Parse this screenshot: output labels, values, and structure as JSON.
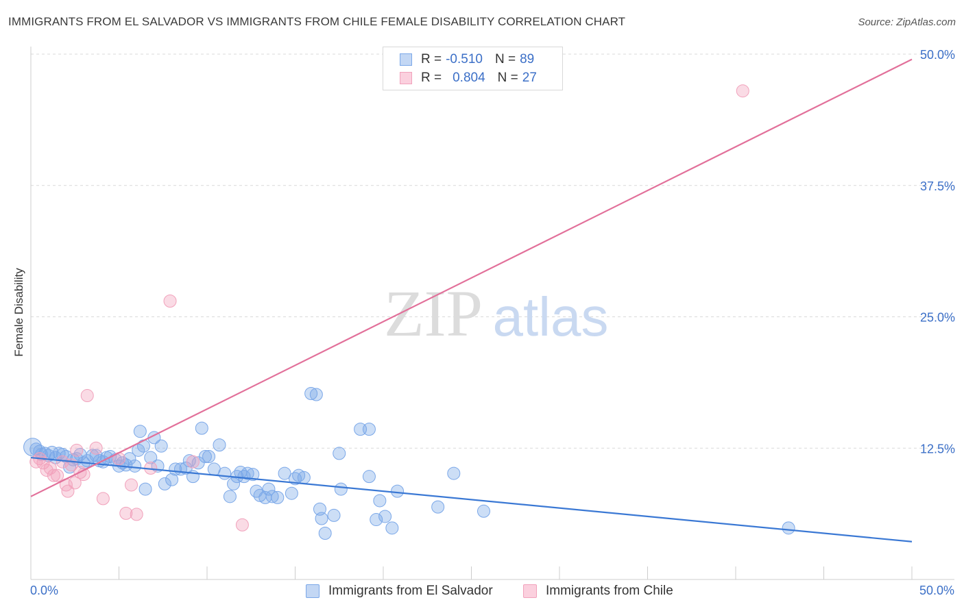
{
  "header": {
    "title": "IMMIGRANTS FROM EL SALVADOR VS IMMIGRANTS FROM CHILE FEMALE DISABILITY CORRELATION CHART",
    "source": "Source: ZipAtlas.com"
  },
  "watermark": {
    "zip": "ZIP",
    "atlas": "atlas"
  },
  "legend": {
    "rows": [
      {
        "r_label": "R =",
        "r_value": "-0.510",
        "n_label": "N =",
        "n_value": "89",
        "color": "#7aa7e8"
      },
      {
        "r_label": "R =",
        "r_value": "0.804",
        "n_label": "N =",
        "n_value": "27",
        "color": "#f1a1bb"
      }
    ]
  },
  "x_axis": {
    "min_label": "0.0%",
    "max_label": "50.0%"
  },
  "chart_data": {
    "type": "scatter",
    "ylabel": "Female Disability",
    "xlim": [
      0,
      50
    ],
    "ylim": [
      0,
      50
    ],
    "y_ticks": [
      {
        "value": 12.5,
        "label": "12.5%"
      },
      {
        "value": 25.0,
        "label": "25.0%"
      },
      {
        "value": 37.5,
        "label": "37.5%"
      },
      {
        "value": 50.0,
        "label": "50.0%"
      }
    ],
    "grid": true,
    "series": [
      {
        "name": "Immigrants from El Salvador",
        "color": "#7aa7e8",
        "line_color": "#3a78d4",
        "trend": {
          "x": [
            0,
            50
          ],
          "y": [
            11.6,
            3.6
          ]
        },
        "points": [
          [
            0.1,
            12.6
          ],
          [
            0.3,
            12.4
          ],
          [
            0.5,
            12.2
          ],
          [
            0.6,
            11.9
          ],
          [
            0.8,
            12.0
          ],
          [
            1.0,
            11.8
          ],
          [
            1.2,
            12.1
          ],
          [
            1.4,
            11.6
          ],
          [
            1.6,
            12.0
          ],
          [
            1.8,
            11.9
          ],
          [
            2.0,
            11.7
          ],
          [
            2.2,
            10.7
          ],
          [
            2.4,
            11.4
          ],
          [
            2.6,
            11.5
          ],
          [
            2.8,
            11.9
          ],
          [
            3.0,
            11.1
          ],
          [
            3.2,
            11.3
          ],
          [
            3.5,
            11.8
          ],
          [
            3.7,
            11.8
          ],
          [
            3.9,
            11.3
          ],
          [
            4.1,
            11.2
          ],
          [
            4.3,
            11.6
          ],
          [
            4.5,
            11.7
          ],
          [
            4.8,
            11.4
          ],
          [
            5.0,
            10.8
          ],
          [
            5.2,
            11.1
          ],
          [
            5.4,
            10.9
          ],
          [
            5.6,
            11.5
          ],
          [
            5.9,
            10.8
          ],
          [
            6.1,
            12.3
          ],
          [
            6.2,
            14.1
          ],
          [
            6.4,
            12.7
          ],
          [
            6.5,
            8.6
          ],
          [
            6.8,
            11.6
          ],
          [
            7.0,
            13.5
          ],
          [
            7.2,
            10.8
          ],
          [
            7.4,
            12.7
          ],
          [
            7.6,
            9.1
          ],
          [
            8.0,
            9.5
          ],
          [
            8.2,
            10.5
          ],
          [
            8.5,
            10.5
          ],
          [
            8.8,
            10.6
          ],
          [
            9.0,
            11.3
          ],
          [
            9.2,
            9.8
          ],
          [
            9.5,
            11.1
          ],
          [
            9.7,
            14.4
          ],
          [
            9.9,
            11.7
          ],
          [
            10.1,
            11.7
          ],
          [
            10.4,
            10.5
          ],
          [
            10.7,
            12.8
          ],
          [
            11.0,
            10.1
          ],
          [
            11.3,
            7.9
          ],
          [
            11.5,
            9.1
          ],
          [
            11.7,
            9.8
          ],
          [
            11.9,
            10.2
          ],
          [
            12.1,
            9.8
          ],
          [
            12.3,
            10.1
          ],
          [
            12.6,
            10.0
          ],
          [
            12.8,
            8.4
          ],
          [
            13.0,
            8.0
          ],
          [
            13.3,
            7.8
          ],
          [
            13.5,
            8.6
          ],
          [
            13.7,
            7.9
          ],
          [
            14.0,
            7.8
          ],
          [
            14.4,
            10.1
          ],
          [
            14.8,
            8.2
          ],
          [
            15.0,
            9.6
          ],
          [
            15.2,
            9.9
          ],
          [
            15.5,
            9.7
          ],
          [
            15.9,
            17.7
          ],
          [
            16.2,
            17.6
          ],
          [
            16.4,
            6.7
          ],
          [
            16.5,
            5.8
          ],
          [
            16.7,
            4.4
          ],
          [
            17.2,
            6.1
          ],
          [
            17.5,
            12.0
          ],
          [
            17.6,
            8.6
          ],
          [
            18.7,
            14.3
          ],
          [
            19.2,
            14.3
          ],
          [
            19.2,
            9.8
          ],
          [
            19.6,
            5.7
          ],
          [
            19.8,
            7.5
          ],
          [
            20.1,
            6.0
          ],
          [
            20.5,
            4.9
          ],
          [
            20.8,
            8.4
          ],
          [
            23.1,
            6.9
          ],
          [
            24.0,
            10.1
          ],
          [
            25.7,
            6.5
          ],
          [
            43.0,
            4.9
          ]
        ]
      },
      {
        "name": "Immigrants from Chile",
        "color": "#f1a1bb",
        "line_color": "#e2709a",
        "trend": {
          "x": [
            0,
            50
          ],
          "y": [
            7.9,
            49.5
          ]
        },
        "points": [
          [
            0.3,
            11.2
          ],
          [
            0.5,
            11.5
          ],
          [
            0.7,
            11.1
          ],
          [
            0.9,
            10.4
          ],
          [
            1.1,
            10.6
          ],
          [
            1.3,
            9.9
          ],
          [
            1.5,
            9.9
          ],
          [
            1.8,
            11.2
          ],
          [
            2.0,
            9.0
          ],
          [
            2.1,
            8.4
          ],
          [
            2.3,
            10.9
          ],
          [
            2.5,
            9.2
          ],
          [
            2.6,
            12.3
          ],
          [
            2.8,
            10.2
          ],
          [
            3.0,
            10.0
          ],
          [
            3.2,
            17.5
          ],
          [
            3.7,
            12.5
          ],
          [
            4.1,
            7.7
          ],
          [
            5.0,
            11.5
          ],
          [
            5.4,
            6.3
          ],
          [
            5.7,
            9.0
          ],
          [
            6.0,
            6.2
          ],
          [
            6.8,
            10.6
          ],
          [
            7.9,
            26.5
          ],
          [
            9.2,
            11.2
          ],
          [
            12.0,
            5.2
          ],
          [
            40.4,
            46.5
          ]
        ]
      }
    ]
  }
}
